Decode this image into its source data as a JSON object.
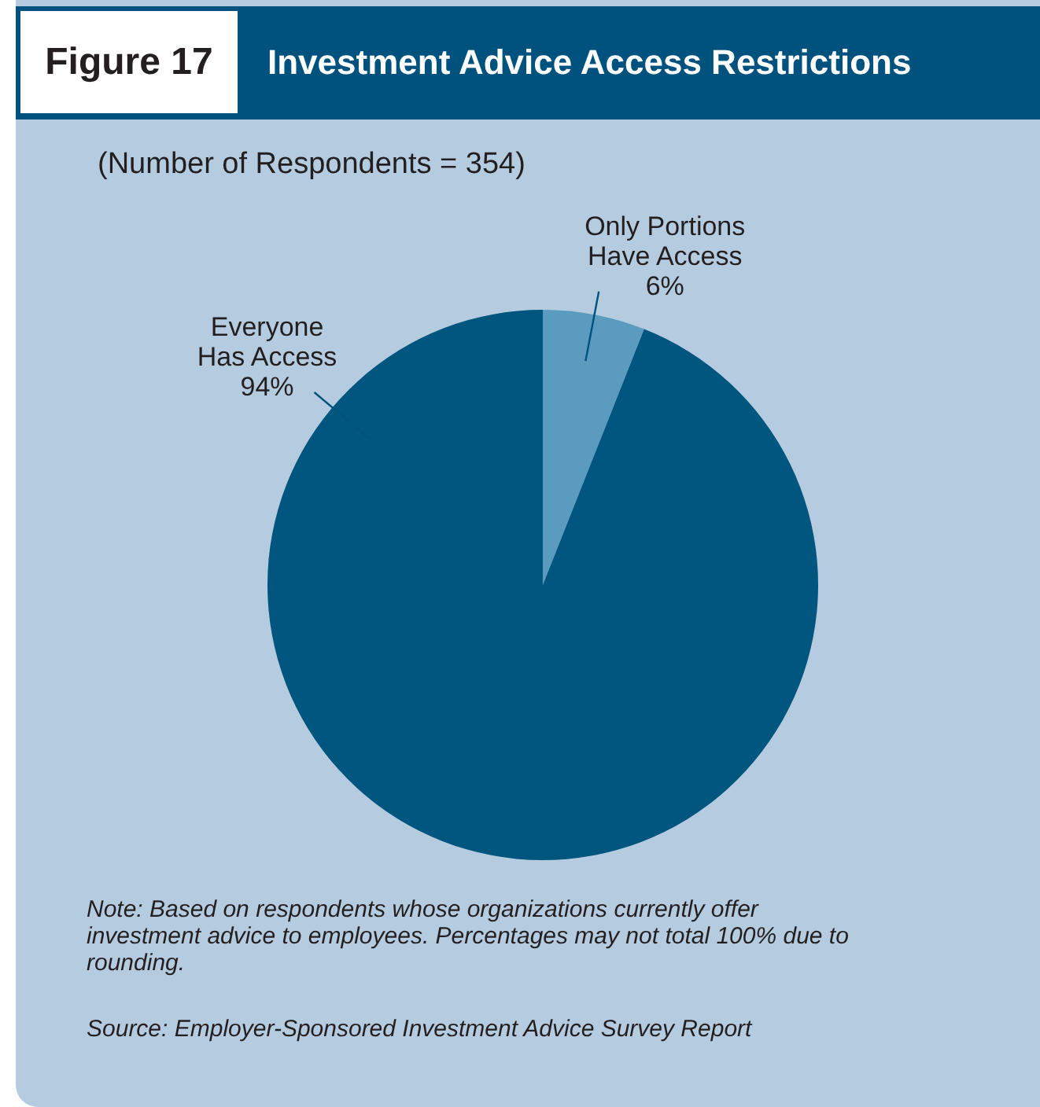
{
  "chart_data": {
    "type": "pie",
    "title": "Investment Advice Access Restrictions",
    "subtitle": "(Number of Respondents = 354)",
    "categories": [
      "Only Portions\nHave Access",
      "Everyone\nHas Access"
    ],
    "values": [
      6,
      94
    ],
    "colors": [
      "#5b9bbf",
      "#00567f"
    ],
    "value_labels": [
      "6%",
      "94%"
    ],
    "legend": false,
    "annotations": [
      "Figure 17",
      "Note: Based on respondents whose organizations currently offer investment advice to employees. Percentages may not total 100% due to rounding.",
      "Source: Employer-Sponsored Investment Advice Survey Report"
    ]
  }
}
